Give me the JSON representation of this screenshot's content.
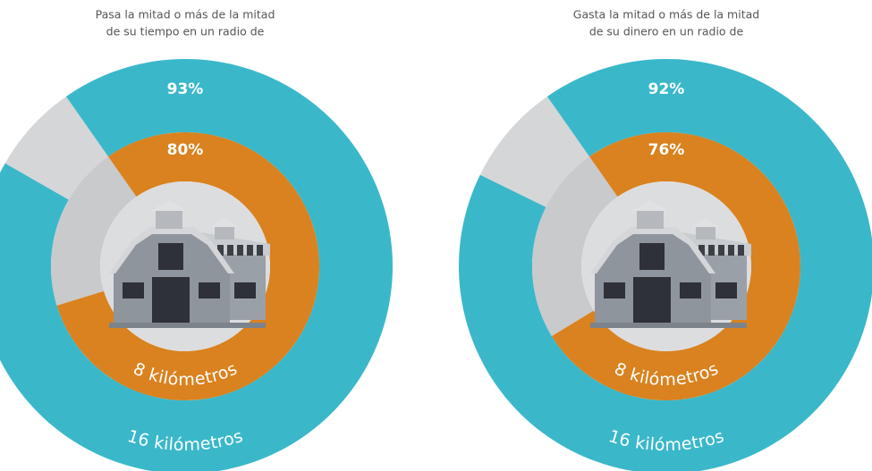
{
  "chart_data": [
    {
      "type": "donut",
      "title": [
        "Pasa la mitad o más de la mitad",
        "de su tiempo en un radio de"
      ],
      "series": [
        {
          "name": "16 kilómetros",
          "color": "#3ab8ca",
          "values": [
            93
          ],
          "value_labels": [
            "93%"
          ]
        },
        {
          "name": "8 kilómetros",
          "color": "#d9821f",
          "values": [
            80
          ],
          "value_labels": [
            "80%"
          ]
        }
      ]
    },
    {
      "type": "donut",
      "title": [
        "Gasta la mitad o más de la mitad",
        "de su dinero en un radio de"
      ],
      "series": [
        {
          "name": "16 kilómetros",
          "color": "#3ab8ca",
          "values": [
            92
          ],
          "value_labels": [
            "92%"
          ]
        },
        {
          "name": "8 kilómetros",
          "color": "#d9821f",
          "values": [
            76
          ],
          "value_labels": [
            "76%"
          ]
        }
      ]
    }
  ]
}
